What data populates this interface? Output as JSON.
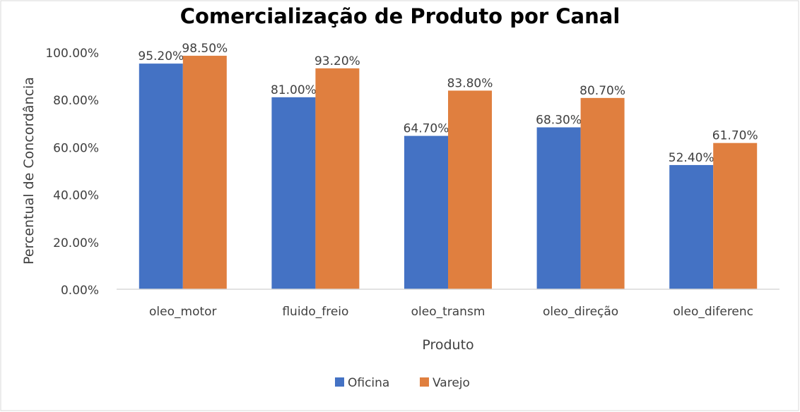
{
  "chart_data": {
    "type": "bar",
    "title": "Comercialização de Produto por Canal",
    "xlabel": "Produto",
    "ylabel": "Percentual de Concordância",
    "categories": [
      "oleo_motor",
      "fluido_freio",
      "oleo_transm",
      "oleo_direção",
      "oleo_diferenc"
    ],
    "series": [
      {
        "name": "Oficina",
        "color": "#4472C4",
        "values": [
          95.2,
          81.0,
          64.7,
          68.3,
          52.4
        ],
        "labels": [
          "95.20%",
          "81.00%",
          "64.70%",
          "68.30%",
          "52.40%"
        ]
      },
      {
        "name": "Varejo",
        "color": "#E07F3F",
        "values": [
          98.5,
          93.2,
          83.8,
          80.7,
          61.7
        ],
        "labels": [
          "98.50%",
          "93.20%",
          "83.80%",
          "80.70%",
          "61.70%"
        ]
      }
    ],
    "ylim": [
      0,
      100
    ],
    "yticks": [
      0,
      20,
      40,
      60,
      80,
      100
    ],
    "ytick_labels": [
      "0.00%",
      "20.00%",
      "40.00%",
      "60.00%",
      "80.00%",
      "100.00%"
    ],
    "grid": false,
    "legend": "bottom"
  }
}
